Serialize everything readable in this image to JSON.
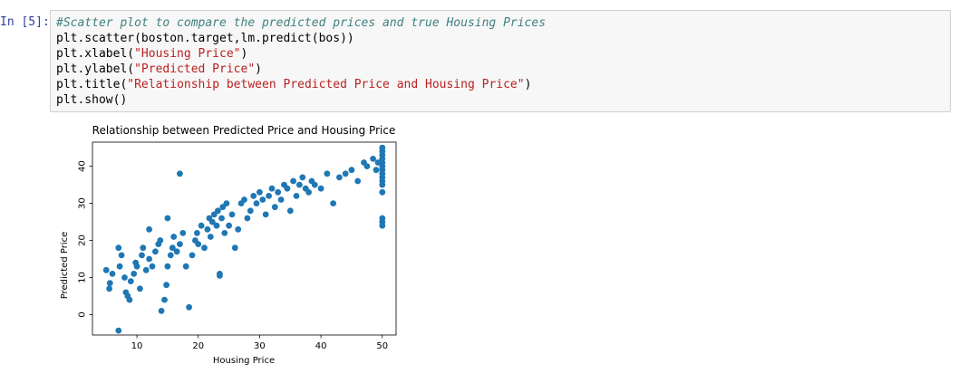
{
  "cell": {
    "prompt": "In [5]:",
    "code_lines": [
      {
        "segments": [
          {
            "t": "#Scatter plot to compare the predicted prices and true Housing Prices",
            "c": "cm-comment"
          }
        ]
      },
      {
        "segments": [
          {
            "t": "plt.scatter(boston.target,lm.predict(bos))",
            "c": ""
          }
        ]
      },
      {
        "segments": [
          {
            "t": "plt.xlabel(",
            "c": ""
          },
          {
            "t": "\"Housing Price\"",
            "c": "cm-string"
          },
          {
            "t": ")",
            "c": ""
          }
        ]
      },
      {
        "segments": [
          {
            "t": "plt.ylabel(",
            "c": ""
          },
          {
            "t": "\"Predicted Price\"",
            "c": "cm-string"
          },
          {
            "t": ")",
            "c": ""
          }
        ]
      },
      {
        "segments": [
          {
            "t": "plt.title(",
            "c": ""
          },
          {
            "t": "\"Relationship between Predicted Price and Housing Price\"",
            "c": "cm-string"
          },
          {
            "t": ")",
            "c": ""
          }
        ]
      },
      {
        "segments": [
          {
            "t": "plt.show()",
            "c": ""
          }
        ]
      }
    ]
  },
  "chart_data": {
    "type": "scatter",
    "title": "Relationship between Predicted Price and Housing Price",
    "xlabel": "Housing Price",
    "ylabel": "Predicted Price",
    "xlim": [
      2.75,
      52.25
    ],
    "ylim": [
      -5.5,
      46.5
    ],
    "xticks": [
      10,
      20,
      30,
      40,
      50
    ],
    "yticks": [
      0,
      10,
      20,
      30,
      40
    ],
    "color": "#1f77b4",
    "points": [
      [
        7.0,
        -4.3
      ],
      [
        5.5,
        7.0
      ],
      [
        5.6,
        8.5
      ],
      [
        5.0,
        12.0
      ],
      [
        6.0,
        11.0
      ],
      [
        7.2,
        13.0
      ],
      [
        7.0,
        18.0
      ],
      [
        7.5,
        16.0
      ],
      [
        8.0,
        10.0
      ],
      [
        8.2,
        6.0
      ],
      [
        8.5,
        5.0
      ],
      [
        8.8,
        4.0
      ],
      [
        9.0,
        9.0
      ],
      [
        9.5,
        11.0
      ],
      [
        9.8,
        14.0
      ],
      [
        10.0,
        13.0
      ],
      [
        10.5,
        7.0
      ],
      [
        10.8,
        16.0
      ],
      [
        11.0,
        18.0
      ],
      [
        11.5,
        12.0
      ],
      [
        12.0,
        15.0
      ],
      [
        12.5,
        13.0
      ],
      [
        13.0,
        17.0
      ],
      [
        13.5,
        19.0
      ],
      [
        13.8,
        20.0
      ],
      [
        14.0,
        1.0
      ],
      [
        14.5,
        4.0
      ],
      [
        14.8,
        8.0
      ],
      [
        15.0,
        13.0
      ],
      [
        15.5,
        16.0
      ],
      [
        15.8,
        18.0
      ],
      [
        16.0,
        21.0
      ],
      [
        16.5,
        17.0
      ],
      [
        17.0,
        19.0
      ],
      [
        17.5,
        22.0
      ],
      [
        18.0,
        13.0
      ],
      [
        18.5,
        2.0
      ],
      [
        19.0,
        16.0
      ],
      [
        19.5,
        20.0
      ],
      [
        19.8,
        22.0
      ],
      [
        20.0,
        19.0
      ],
      [
        20.5,
        24.0
      ],
      [
        21.0,
        18.0
      ],
      [
        21.5,
        23.0
      ],
      [
        21.8,
        26.0
      ],
      [
        22.0,
        21.0
      ],
      [
        22.3,
        25.0
      ],
      [
        22.6,
        27.0
      ],
      [
        23.0,
        24.0
      ],
      [
        23.2,
        28.0
      ],
      [
        23.5,
        11.0
      ],
      [
        23.8,
        26.0
      ],
      [
        24.0,
        29.0
      ],
      [
        24.3,
        22.0
      ],
      [
        24.6,
        30.0
      ],
      [
        25.0,
        24.0
      ],
      [
        25.5,
        27.0
      ],
      [
        26.0,
        18.0
      ],
      [
        26.5,
        23.0
      ],
      [
        27.0,
        30.0
      ],
      [
        27.5,
        31.0
      ],
      [
        28.0,
        26.0
      ],
      [
        28.5,
        28.0
      ],
      [
        29.0,
        32.0
      ],
      [
        29.5,
        30.0
      ],
      [
        30.0,
        33.0
      ],
      [
        30.5,
        31.0
      ],
      [
        31.0,
        27.0
      ],
      [
        31.5,
        32.0
      ],
      [
        32.0,
        34.0
      ],
      [
        32.5,
        29.0
      ],
      [
        33.0,
        33.0
      ],
      [
        33.5,
        31.0
      ],
      [
        34.0,
        35.0
      ],
      [
        34.5,
        34.0
      ],
      [
        35.0,
        28.0
      ],
      [
        35.5,
        36.0
      ],
      [
        36.0,
        32.0
      ],
      [
        36.5,
        35.0
      ],
      [
        37.0,
        37.0
      ],
      [
        37.5,
        34.0
      ],
      [
        38.0,
        33.0
      ],
      [
        38.5,
        36.0
      ],
      [
        39.0,
        35.0
      ],
      [
        40.0,
        34.0
      ],
      [
        41.0,
        38.0
      ],
      [
        42.0,
        30.0
      ],
      [
        43.0,
        37.0
      ],
      [
        44.0,
        38.0
      ],
      [
        45.0,
        39.0
      ],
      [
        46.0,
        36.0
      ],
      [
        47.0,
        41.0
      ],
      [
        47.5,
        40.0
      ],
      [
        48.5,
        42.0
      ],
      [
        49.0,
        39.0
      ],
      [
        49.3,
        41.0
      ],
      [
        50.0,
        24.0
      ],
      [
        50.0,
        25.0
      ],
      [
        50.0,
        26.0
      ],
      [
        50.0,
        33.0
      ],
      [
        50.0,
        35.0
      ],
      [
        50.0,
        36.0
      ],
      [
        50.0,
        37.0
      ],
      [
        50.0,
        38.0
      ],
      [
        50.0,
        39.0
      ],
      [
        50.0,
        40.0
      ],
      [
        50.0,
        41.0
      ],
      [
        50.0,
        42.0
      ],
      [
        50.0,
        43.0
      ],
      [
        50.0,
        44.0
      ],
      [
        50.0,
        45.0
      ],
      [
        17.0,
        38.0
      ],
      [
        15.0,
        26.0
      ],
      [
        12.0,
        23.0
      ],
      [
        23.5,
        10.5
      ]
    ]
  }
}
